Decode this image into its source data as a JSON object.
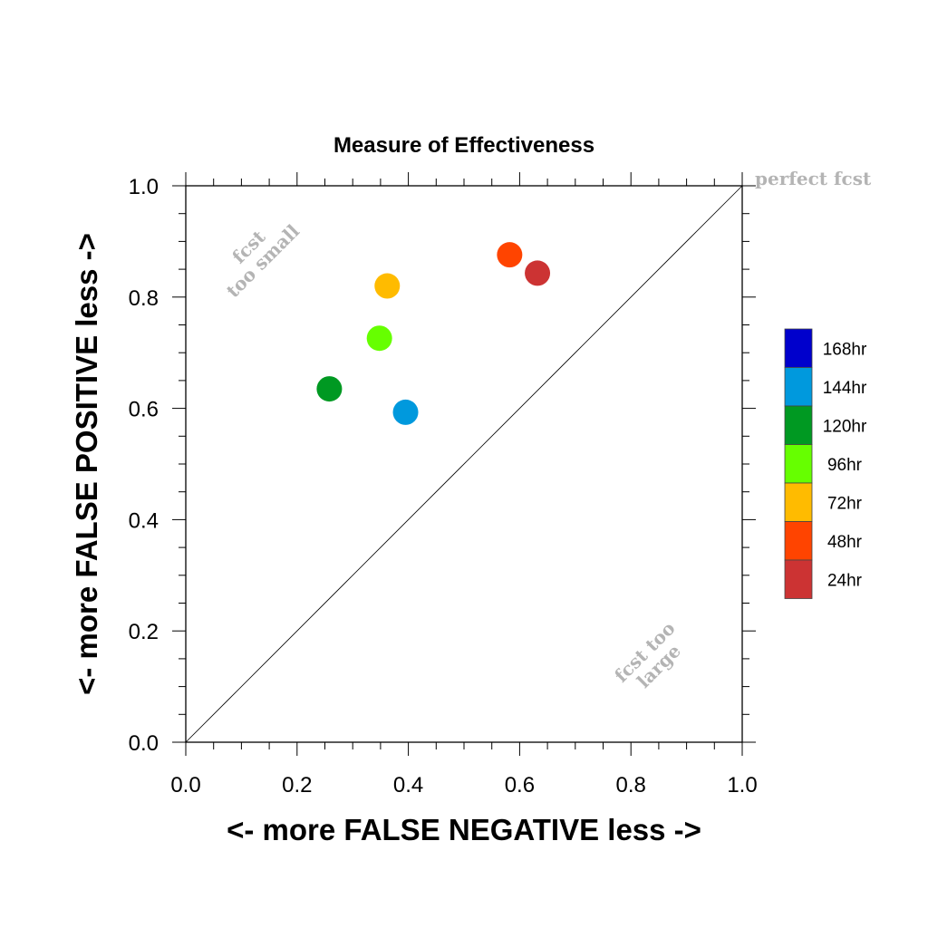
{
  "chart_data": {
    "type": "scatter",
    "title": "Measure of Effectiveness",
    "xlabel": "<- more   FALSE NEGATIVE   less ->",
    "ylabel": "<- more   FALSE POSITIVE   less ->",
    "xlim": [
      0,
      1
    ],
    "ylim": [
      0,
      1
    ],
    "xticks": [
      "0.0",
      "0.2",
      "0.4",
      "0.6",
      "0.8",
      "1.0"
    ],
    "yticks": [
      "0.0",
      "0.2",
      "0.4",
      "0.6",
      "0.8",
      "1.0"
    ],
    "grid": false,
    "legend_position": "right",
    "reference_line": {
      "from": [
        0,
        0
      ],
      "to": [
        1,
        1
      ]
    },
    "annotations": {
      "perfect": "perfect fcst",
      "too_small": [
        "fcst",
        "too small"
      ],
      "too_large": [
        "fcst too",
        "large"
      ]
    },
    "series": [
      {
        "name": "168hr",
        "color": "#0000cc",
        "points": []
      },
      {
        "name": "144hr",
        "color": "#0099dd",
        "points": [
          [
            0.395,
            0.593
          ]
        ]
      },
      {
        "name": "120hr",
        "color": "#009922",
        "points": [
          [
            0.258,
            0.635
          ]
        ]
      },
      {
        "name": "96hr",
        "color": "#66ff00",
        "points": [
          [
            0.348,
            0.726
          ]
        ]
      },
      {
        "name": "72hr",
        "color": "#ffbb00",
        "points": [
          [
            0.362,
            0.82
          ]
        ]
      },
      {
        "name": "48hr",
        "color": "#ff4400",
        "points": [
          [
            0.582,
            0.876
          ]
        ]
      },
      {
        "name": "24hr",
        "color": "#cc3333",
        "points": [
          [
            0.632,
            0.843
          ]
        ]
      }
    ]
  }
}
